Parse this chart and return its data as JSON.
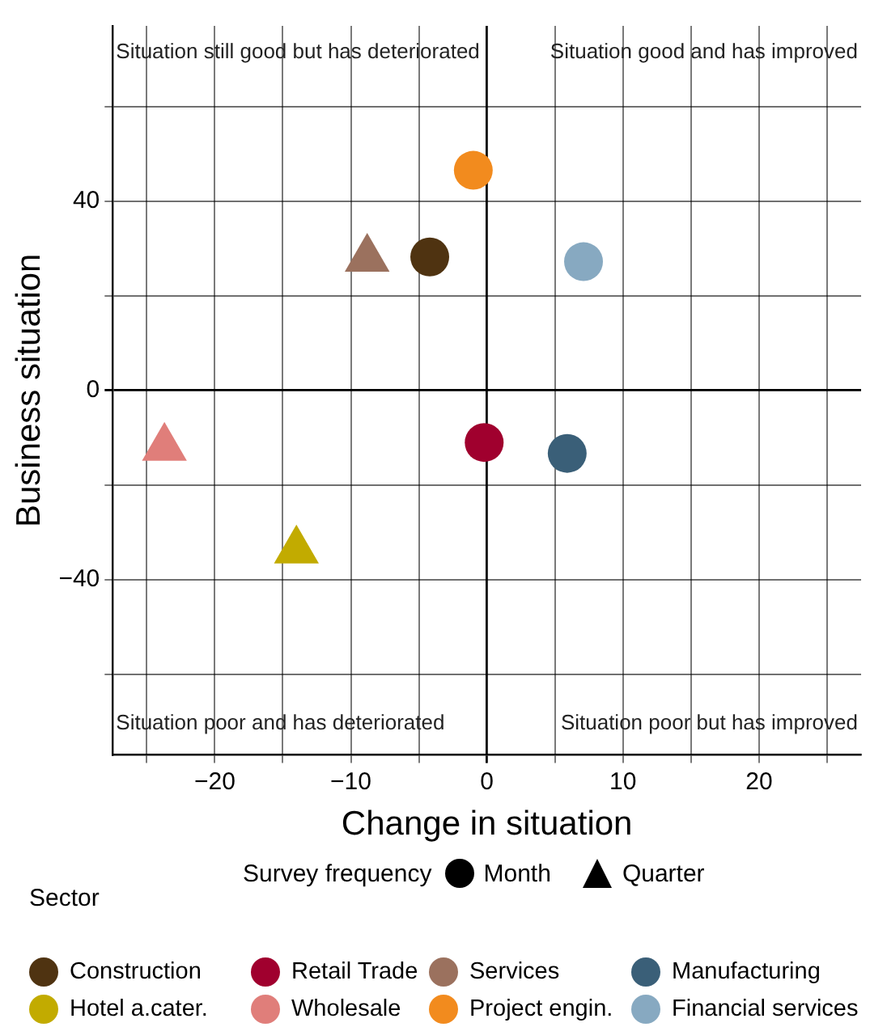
{
  "chart_data": {
    "type": "scatter",
    "xlabel": "Change in situation",
    "ylabel": "Business situation",
    "legend_title": "Sector",
    "legend": "bottom",
    "grid": true,
    "xlim": [
      -27.5,
      27.5
    ],
    "ylim": [
      -77,
      77
    ],
    "xticks": [
      {
        "value": -25,
        "label": null
      },
      {
        "value": -20,
        "label": "−20"
      },
      {
        "value": -15,
        "label": null
      },
      {
        "value": -10,
        "label": "−10"
      },
      {
        "value": -5,
        "label": null
      },
      0,
      {
        "value": 5,
        "label": null
      },
      10,
      {
        "value": 15,
        "label": null
      },
      20,
      {
        "value": 25,
        "label": null
      }
    ],
    "yticks": [
      {
        "value": 60,
        "label": null
      },
      40,
      {
        "value": 20,
        "label": null
      },
      0,
      {
        "value": -20,
        "label": null
      },
      {
        "value": -40,
        "label": "−40"
      },
      {
        "value": -60,
        "label": null
      }
    ],
    "annotations": [
      "Situation still good but has deteriorated",
      "Situation good and has improved",
      "Situation poor and has deteriorated",
      "Situation poor but has improved",
      "Survey frequency",
      "Month",
      "Quarter"
    ],
    "series": [
      {
        "name": "Construction",
        "color": "#4f3311",
        "x": [
          -4.2
        ],
        "values": [
          28.2
        ],
        "marker": "circle"
      },
      {
        "name": "Retail Trade",
        "color": "#a0002e",
        "x": [
          -0.2
        ],
        "values": [
          -11.0
        ],
        "marker": "circle"
      },
      {
        "name": "Services",
        "color": "#9b715e",
        "x": [
          -8.8
        ],
        "values": [
          27.8
        ],
        "marker": "triangle"
      },
      {
        "name": "Manufacturing",
        "color": "#3a5f78",
        "x": [
          5.9
        ],
        "values": [
          -13.3
        ],
        "marker": "circle"
      },
      {
        "name": "Hotel a.cater.",
        "color": "#c2ab00",
        "x": [
          -14.0
        ],
        "values": [
          -33.8
        ],
        "marker": "triangle"
      },
      {
        "name": "Wholesale",
        "color": "#e07e7a",
        "x": [
          -23.7
        ],
        "values": [
          -12.1
        ],
        "marker": "triangle"
      },
      {
        "name": "Project engin.",
        "color": "#f28b1e",
        "x": [
          -1.0
        ],
        "values": [
          46.5
        ],
        "marker": "circle"
      },
      {
        "name": "Financial services",
        "color": "#87a9c1",
        "x": [
          7.1
        ],
        "values": [
          27.2
        ],
        "marker": "circle"
      }
    ]
  }
}
